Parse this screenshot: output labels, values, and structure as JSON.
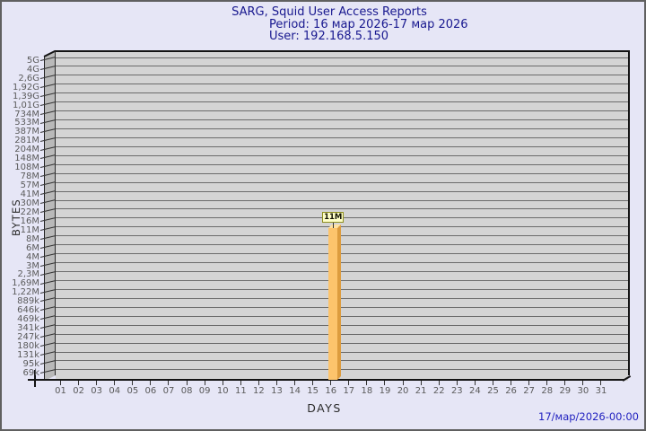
{
  "header": {
    "title": "SARG, Squid User Access Reports",
    "period": "Period: 16 мар 2026-17 мар 2026",
    "user": "User: 192.168.5.150"
  },
  "footer": {
    "generated": "17/мар/2026-00:00"
  },
  "chart_data": {
    "type": "bar",
    "title": "SARG, Squid User Access Reports",
    "subtitle": [
      "Period: 16 мар 2026-17 мар 2026",
      "User: 192.168.5.150"
    ],
    "xlabel": "DAYS",
    "ylabel": "BYTES",
    "y_axis_type": "log",
    "grid": "horizontal",
    "legend": null,
    "y_tick_labels": [
      "5G",
      "4G",
      "2,6G",
      "1,92G",
      "1,39G",
      "1,01G",
      "734M",
      "533M",
      "387M",
      "281M",
      "204M",
      "148M",
      "108M",
      "78M",
      "57M",
      "41M",
      "30M",
      "22M",
      "16M",
      "11M",
      "8M",
      "6M",
      "4M",
      "3M",
      "2,3M",
      "1,69M",
      "1,22M",
      "889k",
      "646k",
      "469k",
      "341k",
      "247k",
      "180k",
      "131k",
      "95k",
      "69k"
    ],
    "x_tick_labels": [
      "01",
      "02",
      "03",
      "04",
      "05",
      "06",
      "07",
      "08",
      "09",
      "10",
      "11",
      "12",
      "13",
      "14",
      "15",
      "16",
      "17",
      "18",
      "19",
      "20",
      "21",
      "22",
      "23",
      "24",
      "25",
      "26",
      "27",
      "28",
      "29",
      "30",
      "31"
    ],
    "bars": [
      {
        "day": "16",
        "value_label": "11M"
      }
    ]
  },
  "colors": {
    "page_bg": "#e6e6f6",
    "page_border": "#606060",
    "title_text": "#18188f",
    "timestamp_text": "#2222c0",
    "plot_bg": "#d4d4d4",
    "wall_bg": "#b9b9b9",
    "grid_line": "#6b6b6b",
    "axis_line": "#141414",
    "tick_mark": "#333333",
    "tick_text": "#5a5a5a",
    "axis_label_text": "#2a2a2a",
    "bar_front": "#fdc46c",
    "bar_side": "#dd9c3e",
    "bar_top": "#ffe2a2",
    "value_box_bg": "#ffffc8",
    "value_box_border": "#8f8f1f",
    "value_text": "#111100"
  }
}
